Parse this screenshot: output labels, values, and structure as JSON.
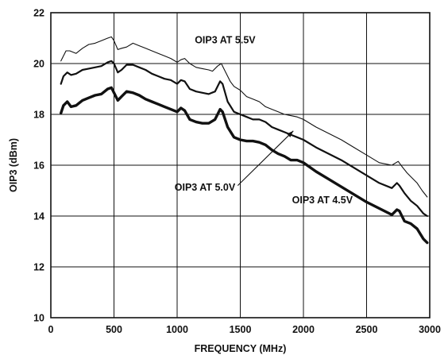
{
  "chart_data": {
    "type": "line",
    "title": "",
    "xlabel": "FREQUENCY (MHz)",
    "ylabel": "OIP3 (dBm)",
    "xlim": [
      0,
      3000
    ],
    "ylim": [
      10,
      22
    ],
    "xticks": [
      0,
      500,
      1000,
      1500,
      2000,
      2500,
      3000
    ],
    "yticks": [
      10,
      12,
      14,
      16,
      18,
      20,
      22
    ],
    "grid": true,
    "colors": {
      "lines": "#111111",
      "background": "#ffffff"
    },
    "series": [
      {
        "name": "OIP3 AT 5.5V",
        "line_weight": "thin",
        "points": [
          [
            80,
            20.1
          ],
          [
            120,
            20.5
          ],
          [
            150,
            20.5
          ],
          [
            200,
            20.4
          ],
          [
            250,
            20.6
          ],
          [
            300,
            20.75
          ],
          [
            350,
            20.8
          ],
          [
            400,
            20.9
          ],
          [
            450,
            21.0
          ],
          [
            480,
            21.05
          ],
          [
            500,
            20.9
          ],
          [
            530,
            20.55
          ],
          [
            560,
            20.6
          ],
          [
            600,
            20.65
          ],
          [
            650,
            20.8
          ],
          [
            700,
            20.7
          ],
          [
            750,
            20.6
          ],
          [
            800,
            20.5
          ],
          [
            850,
            20.4
          ],
          [
            900,
            20.3
          ],
          [
            950,
            20.2
          ],
          [
            1000,
            20.05
          ],
          [
            1030,
            20.15
          ],
          [
            1060,
            20.2
          ],
          [
            1100,
            20.0
          ],
          [
            1150,
            19.85
          ],
          [
            1200,
            19.8
          ],
          [
            1250,
            19.75
          ],
          [
            1280,
            19.7
          ],
          [
            1320,
            19.9
          ],
          [
            1350,
            20.0
          ],
          [
            1380,
            19.7
          ],
          [
            1420,
            19.3
          ],
          [
            1450,
            19.1
          ],
          [
            1500,
            18.95
          ],
          [
            1550,
            18.7
          ],
          [
            1600,
            18.6
          ],
          [
            1650,
            18.5
          ],
          [
            1700,
            18.3
          ],
          [
            1750,
            18.2
          ],
          [
            1800,
            18.1
          ],
          [
            1850,
            18.0
          ],
          [
            1900,
            17.95
          ],
          [
            1950,
            17.9
          ],
          [
            2000,
            17.8
          ],
          [
            2100,
            17.5
          ],
          [
            2200,
            17.25
          ],
          [
            2300,
            17.0
          ],
          [
            2400,
            16.7
          ],
          [
            2500,
            16.4
          ],
          [
            2600,
            16.1
          ],
          [
            2700,
            16.0
          ],
          [
            2750,
            16.15
          ],
          [
            2780,
            15.95
          ],
          [
            2820,
            15.7
          ],
          [
            2860,
            15.5
          ],
          [
            2900,
            15.3
          ],
          [
            2940,
            15.0
          ],
          [
            2980,
            14.75
          ]
        ]
      },
      {
        "name": "OIP3 AT 5.0V",
        "line_weight": "medium",
        "points": [
          [
            80,
            19.2
          ],
          [
            100,
            19.5
          ],
          [
            130,
            19.65
          ],
          [
            160,
            19.55
          ],
          [
            200,
            19.6
          ],
          [
            250,
            19.75
          ],
          [
            300,
            19.8
          ],
          [
            350,
            19.85
          ],
          [
            400,
            19.9
          ],
          [
            450,
            20.05
          ],
          [
            480,
            20.1
          ],
          [
            500,
            20.0
          ],
          [
            530,
            19.65
          ],
          [
            560,
            19.75
          ],
          [
            600,
            19.95
          ],
          [
            650,
            19.95
          ],
          [
            700,
            19.85
          ],
          [
            750,
            19.75
          ],
          [
            800,
            19.6
          ],
          [
            850,
            19.5
          ],
          [
            900,
            19.4
          ],
          [
            950,
            19.35
          ],
          [
            1000,
            19.2
          ],
          [
            1030,
            19.35
          ],
          [
            1060,
            19.3
          ],
          [
            1100,
            19.0
          ],
          [
            1150,
            18.9
          ],
          [
            1200,
            18.85
          ],
          [
            1250,
            18.8
          ],
          [
            1300,
            18.9
          ],
          [
            1340,
            19.3
          ],
          [
            1360,
            19.2
          ],
          [
            1400,
            18.5
          ],
          [
            1450,
            18.1
          ],
          [
            1500,
            18.0
          ],
          [
            1550,
            17.9
          ],
          [
            1600,
            17.8
          ],
          [
            1650,
            17.8
          ],
          [
            1700,
            17.7
          ],
          [
            1750,
            17.5
          ],
          [
            1800,
            17.4
          ],
          [
            1850,
            17.3
          ],
          [
            1900,
            17.2
          ],
          [
            1950,
            17.1
          ],
          [
            2000,
            17.0
          ],
          [
            2100,
            16.7
          ],
          [
            2200,
            16.45
          ],
          [
            2300,
            16.2
          ],
          [
            2400,
            15.9
          ],
          [
            2500,
            15.6
          ],
          [
            2600,
            15.3
          ],
          [
            2700,
            15.1
          ],
          [
            2740,
            15.3
          ],
          [
            2760,
            15.2
          ],
          [
            2800,
            14.9
          ],
          [
            2850,
            14.6
          ],
          [
            2900,
            14.4
          ],
          [
            2950,
            14.1
          ],
          [
            2980,
            14.0
          ]
        ]
      },
      {
        "name": "OIP3 AT 4.5V",
        "line_weight": "thick",
        "points": [
          [
            80,
            18.05
          ],
          [
            100,
            18.35
          ],
          [
            130,
            18.5
          ],
          [
            160,
            18.3
          ],
          [
            200,
            18.35
          ],
          [
            250,
            18.55
          ],
          [
            300,
            18.65
          ],
          [
            350,
            18.75
          ],
          [
            400,
            18.8
          ],
          [
            450,
            19.0
          ],
          [
            480,
            19.05
          ],
          [
            500,
            18.85
          ],
          [
            530,
            18.55
          ],
          [
            560,
            18.7
          ],
          [
            600,
            18.9
          ],
          [
            650,
            18.85
          ],
          [
            700,
            18.75
          ],
          [
            750,
            18.6
          ],
          [
            800,
            18.5
          ],
          [
            850,
            18.4
          ],
          [
            900,
            18.3
          ],
          [
            950,
            18.2
          ],
          [
            1000,
            18.1
          ],
          [
            1030,
            18.25
          ],
          [
            1060,
            18.15
          ],
          [
            1100,
            17.8
          ],
          [
            1150,
            17.7
          ],
          [
            1200,
            17.65
          ],
          [
            1250,
            17.65
          ],
          [
            1300,
            17.8
          ],
          [
            1340,
            18.2
          ],
          [
            1360,
            18.1
          ],
          [
            1400,
            17.5
          ],
          [
            1450,
            17.1
          ],
          [
            1500,
            17.0
          ],
          [
            1550,
            16.95
          ],
          [
            1600,
            16.95
          ],
          [
            1650,
            16.9
          ],
          [
            1700,
            16.8
          ],
          [
            1750,
            16.6
          ],
          [
            1800,
            16.45
          ],
          [
            1850,
            16.35
          ],
          [
            1900,
            16.2
          ],
          [
            1950,
            16.2
          ],
          [
            2000,
            16.1
          ],
          [
            2100,
            15.75
          ],
          [
            2200,
            15.45
          ],
          [
            2300,
            15.15
          ],
          [
            2400,
            14.85
          ],
          [
            2500,
            14.55
          ],
          [
            2600,
            14.3
          ],
          [
            2700,
            14.05
          ],
          [
            2740,
            14.25
          ],
          [
            2760,
            14.2
          ],
          [
            2800,
            13.8
          ],
          [
            2850,
            13.7
          ],
          [
            2900,
            13.5
          ],
          [
            2950,
            13.1
          ],
          [
            2980,
            12.95
          ]
        ]
      }
    ],
    "annotations": [
      {
        "text": "OIP3 AT 5.5V",
        "x": 1380,
        "y": 20.8
      },
      {
        "text": "OIP3 AT 5.0V",
        "x": 1220,
        "y": 15.0
      },
      {
        "text": "OIP3 AT 4.5V",
        "x": 2150,
        "y": 14.5
      }
    ],
    "arrow": {
      "from": [
        1480,
        15.2
      ],
      "to": [
        1920,
        17.35
      ]
    }
  }
}
